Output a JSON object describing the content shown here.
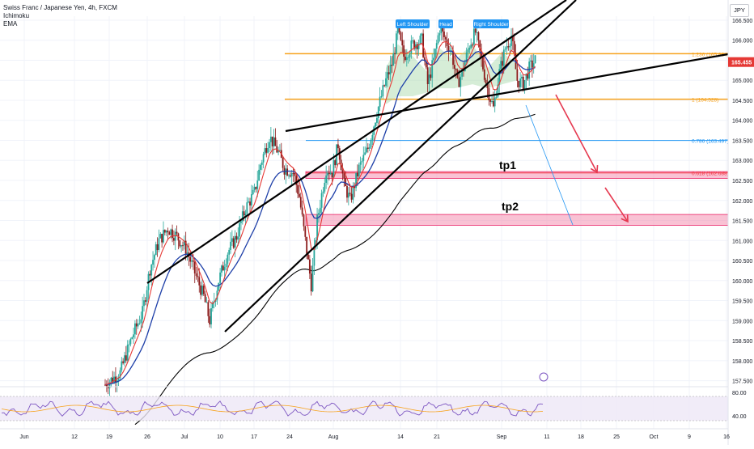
{
  "header": {
    "symbol_line": "Swiss Franc / Japanese Yen, 4h, FXCM",
    "indicators": [
      "Ichimoku",
      "EMA"
    ],
    "currency": "JPY"
  },
  "colors": {
    "up_candle": "#26a69a",
    "down_candle": "#8b1a1a",
    "kijun": "#1e3fa8",
    "tenkan": "#e53935",
    "cloud": "#a5d6a7",
    "ema": "#000000",
    "fib_orange": "#f7a21b",
    "fib_blue": "#2196f3",
    "fib_red": "#f23645",
    "tp_zone": "#f48fb1",
    "trendline": "#000000",
    "rsi_line": "#7e57c2",
    "rsi_band": "#ede7f6"
  },
  "chart_data": {
    "type": "candlestick",
    "title": "Swiss Franc / Japanese Yen, 4h, FXCM",
    "ylim": [
      157.35,
      166.6
    ],
    "y_ticks": [
      "166.500",
      "166.000",
      "165.500",
      "165.000",
      "164.500",
      "164.000",
      "163.500",
      "163.000",
      "162.500",
      "162.000",
      "161.500",
      "161.000",
      "160.500",
      "160.000",
      "159.500",
      "159.000",
      "158.500",
      "158.000",
      "157.500"
    ],
    "x_ticks": [
      "Jun",
      "12",
      "19",
      "26",
      "Jul",
      "10",
      "17",
      "24",
      "Aug",
      "14",
      "21",
      "Sep",
      "11",
      "18",
      "25",
      "Oct",
      "9",
      "16"
    ],
    "last_price": "165.455",
    "price_path": [
      [
        0,
        157.4
      ],
      [
        10,
        157.7
      ],
      [
        18,
        158.6
      ],
      [
        25,
        159.2
      ],
      [
        30,
        160.3
      ],
      [
        36,
        161.0
      ],
      [
        42,
        161.3
      ],
      [
        48,
        161.1
      ],
      [
        54,
        160.8
      ],
      [
        60,
        160.2
      ],
      [
        66,
        159.6
      ],
      [
        70,
        159.0
      ],
      [
        76,
        160.0
      ],
      [
        82,
        160.7
      ],
      [
        88,
        161.1
      ],
      [
        94,
        161.8
      ],
      [
        100,
        162.2
      ],
      [
        104,
        162.9
      ],
      [
        110,
        163.6
      ],
      [
        116,
        163.2
      ],
      [
        120,
        162.8
      ],
      [
        126,
        162.7
      ],
      [
        130,
        162.1
      ],
      [
        134,
        161.0
      ],
      [
        138,
        159.9
      ],
      [
        142,
        161.5
      ],
      [
        148,
        162.8
      ],
      [
        152,
        162.7
      ],
      [
        156,
        163.4
      ],
      [
        160,
        162.4
      ],
      [
        164,
        162.0
      ],
      [
        170,
        162.8
      ],
      [
        176,
        163.3
      ],
      [
        182,
        164.2
      ],
      [
        188,
        165.0
      ],
      [
        192,
        165.4
      ],
      [
        196,
        166.2
      ],
      [
        200,
        165.6
      ],
      [
        206,
        165.9
      ],
      [
        212,
        166.0
      ],
      [
        216,
        164.9
      ],
      [
        220,
        165.5
      ],
      [
        224,
        166.3
      ],
      [
        228,
        166.0
      ],
      [
        232,
        165.7
      ],
      [
        236,
        164.9
      ],
      [
        240,
        165.3
      ],
      [
        244,
        165.9
      ],
      [
        248,
        166.2
      ],
      [
        252,
        165.5
      ],
      [
        256,
        164.8
      ],
      [
        260,
        164.3
      ],
      [
        264,
        165.2
      ],
      [
        268,
        165.8
      ],
      [
        272,
        166.1
      ],
      [
        276,
        165.0
      ],
      [
        280,
        164.9
      ],
      [
        284,
        165.3
      ],
      [
        288,
        165.5
      ]
    ],
    "patterns": [
      "Left Shoulder",
      "Head",
      "Right Shoulder"
    ],
    "fibonacci": [
      {
        "ratio": "1.236",
        "price": "165.664",
        "label": "1.236 (165.664)"
      },
      {
        "ratio": "1",
        "price": "164.528",
        "label": "1 (164.528)"
      },
      {
        "ratio": "0.786",
        "price": "163.497",
        "label": "0.786 (163.497)"
      },
      {
        "ratio": "0.618",
        "price": "162.688",
        "label": "0.618 (162.688)"
      }
    ],
    "targets": [
      {
        "label": "tp1",
        "low": 162.55,
        "high": 162.72
      },
      {
        "label": "tp2",
        "low": 161.38,
        "high": 161.65
      }
    ],
    "rsi": {
      "ticks": [
        "80.00",
        "40.00"
      ],
      "levels": [
        70,
        30
      ]
    }
  }
}
